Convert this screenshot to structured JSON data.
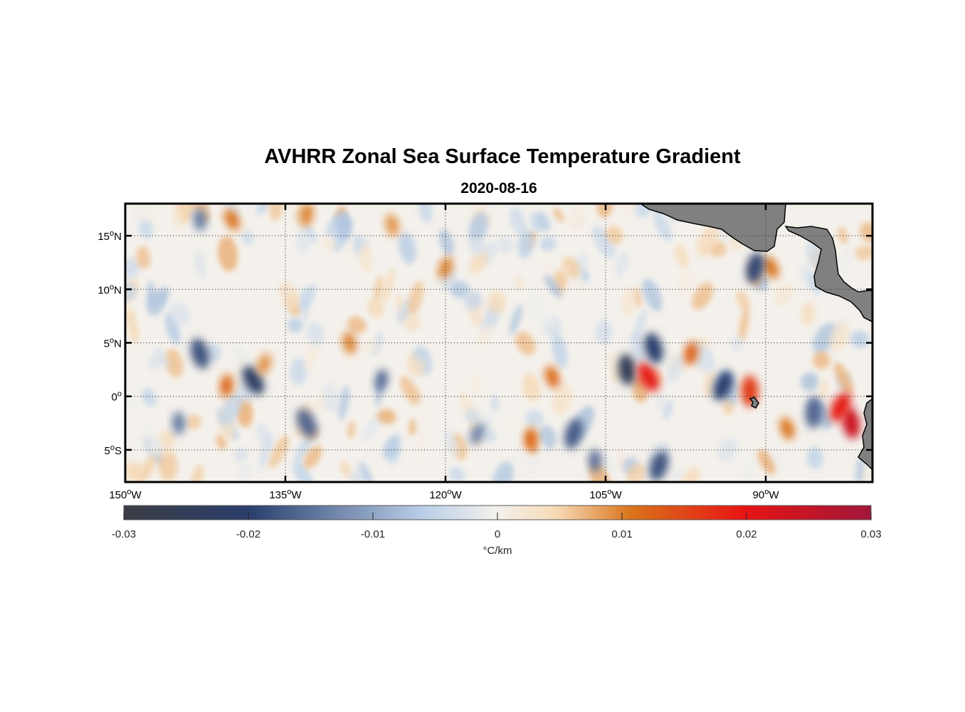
{
  "title": "AVHRR Zonal Sea Surface Temperature Gradient",
  "subtitle": "2020-08-16",
  "colors": {
    "land": "#808080",
    "neg_max": "#3a3d44",
    "neg_mid": "#2b3f6e",
    "neg_low": "#b9cfe8",
    "zero": "#f4f1ec",
    "pos_low": "#f6d9b4",
    "pos_mid": "#d9731a",
    "pos_high": "#e81414",
    "pos_max": "#a0173a"
  },
  "chart_data": {
    "type": "heatmap",
    "title": "AVHRR Zonal Sea Surface Temperature Gradient",
    "subtitle": "2020-08-16",
    "x_axis": {
      "range_deg": [
        -150,
        -80
      ],
      "ticks": [
        {
          "value": -150,
          "label": "150",
          "sup": "o",
          "hemi": "W"
        },
        {
          "value": -135,
          "label": "135",
          "sup": "o",
          "hemi": "W"
        },
        {
          "value": -120,
          "label": "120",
          "sup": "o",
          "hemi": "W"
        },
        {
          "value": -105,
          "label": "105",
          "sup": "o",
          "hemi": "W"
        },
        {
          "value": -90,
          "label": "90",
          "sup": "o",
          "hemi": "W"
        }
      ]
    },
    "y_axis": {
      "range_deg": [
        -8,
        18
      ],
      "ticks": [
        {
          "value": 15,
          "label": "15",
          "sup": "o",
          "hemi": "N"
        },
        {
          "value": 10,
          "label": "10",
          "sup": "o",
          "hemi": "N"
        },
        {
          "value": 5,
          "label": "5",
          "sup": "o",
          "hemi": "N"
        },
        {
          "value": 0,
          "label": "0",
          "sup": "o",
          "hemi": ""
        },
        {
          "value": -5,
          "label": "5",
          "sup": "o",
          "hemi": "S"
        }
      ]
    },
    "grid": true,
    "colorbar": {
      "range": [
        -0.03,
        0.03
      ],
      "ticks": [
        -0.03,
        -0.02,
        -0.01,
        0,
        0.01,
        0.02,
        0.03
      ],
      "tick_labels": [
        "-0.03",
        "-0.02",
        "-0.01",
        "0",
        "0.01",
        "0.02",
        "0.03"
      ],
      "units": "°C/km"
    },
    "features": [
      {
        "lon": -138.0,
        "lat": 1.5,
        "value": -0.022
      },
      {
        "lon": -140.5,
        "lat": 1.0,
        "value": 0.012
      },
      {
        "lon": -143.0,
        "lat": 4.0,
        "value": -0.018
      },
      {
        "lon": -137.0,
        "lat": 3.0,
        "value": 0.009
      },
      {
        "lon": -145.0,
        "lat": -2.5,
        "value": -0.014
      },
      {
        "lon": -133.0,
        "lat": -2.5,
        "value": -0.016
      },
      {
        "lon": -126.0,
        "lat": 1.5,
        "value": -0.015
      },
      {
        "lon": -129.0,
        "lat": 5.0,
        "value": 0.01
      },
      {
        "lon": -117.0,
        "lat": -3.5,
        "value": -0.013
      },
      {
        "lon": -112.0,
        "lat": -4.0,
        "value": 0.012
      },
      {
        "lon": -110.0,
        "lat": 1.8,
        "value": 0.012
      },
      {
        "lon": -108.0,
        "lat": -3.5,
        "value": -0.017
      },
      {
        "lon": -103.0,
        "lat": 2.5,
        "value": -0.026
      },
      {
        "lon": -101.0,
        "lat": 1.8,
        "value": 0.019
      },
      {
        "lon": -97.0,
        "lat": 4.0,
        "value": 0.013
      },
      {
        "lon": -100.5,
        "lat": 4.5,
        "value": -0.02
      },
      {
        "lon": -94.0,
        "lat": 1.0,
        "value": -0.02
      },
      {
        "lon": -91.5,
        "lat": 0.5,
        "value": 0.016
      },
      {
        "lon": -89.5,
        "lat": 12.0,
        "value": 0.011
      },
      {
        "lon": -91.0,
        "lat": 12.0,
        "value": -0.019
      },
      {
        "lon": -82.0,
        "lat": -2.5,
        "value": 0.024
      },
      {
        "lon": -83.0,
        "lat": -1.0,
        "value": 0.019
      },
      {
        "lon": -85.5,
        "lat": -1.5,
        "value": -0.016
      },
      {
        "lon": -88.0,
        "lat": -3.0,
        "value": 0.011
      },
      {
        "lon": -100.0,
        "lat": -6.5,
        "value": -0.018
      },
      {
        "lon": -143.0,
        "lat": 16.5,
        "value": -0.014
      },
      {
        "lon": -140.0,
        "lat": 16.5,
        "value": 0.011
      },
      {
        "lon": -133.0,
        "lat": 17.0,
        "value": 0.01
      },
      {
        "lon": -125.0,
        "lat": 16.0,
        "value": 0.009
      },
      {
        "lon": -120.0,
        "lat": 12.0,
        "value": 0.01
      },
      {
        "lon": -106.0,
        "lat": -6.0,
        "value": -0.015
      }
    ],
    "land_regions": [
      "Central America",
      "Galápagos Islands",
      "South America"
    ]
  }
}
